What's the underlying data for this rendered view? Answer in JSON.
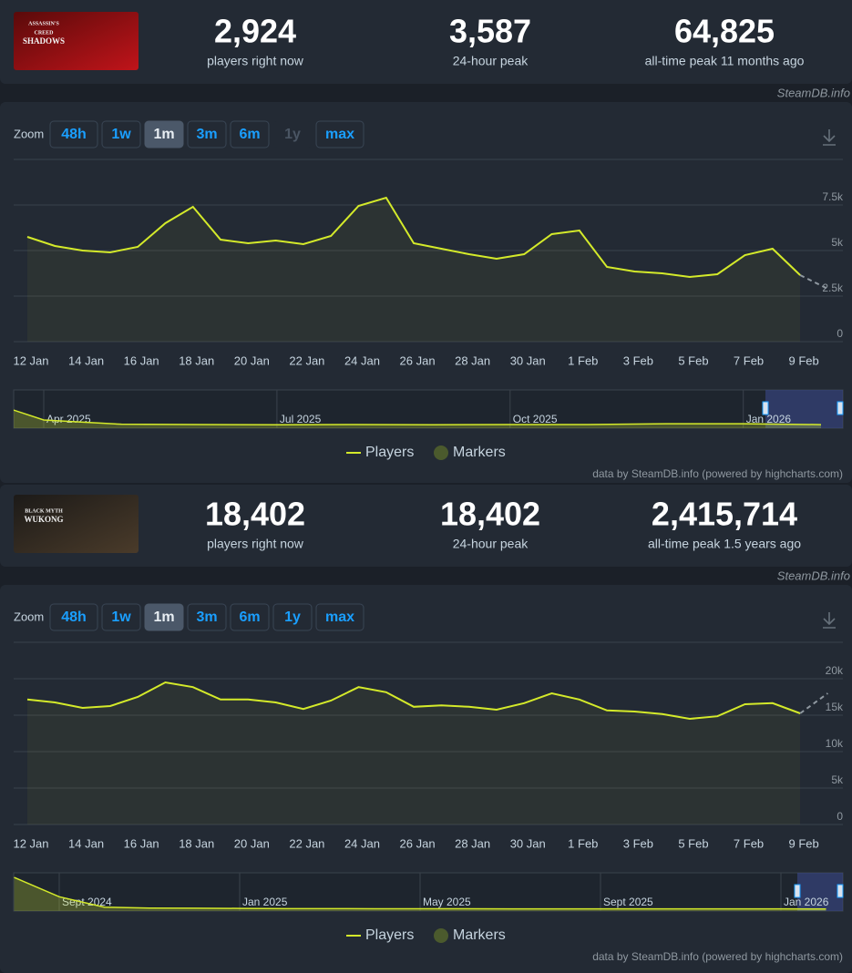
{
  "site": "SteamDB.info",
  "credit": "data by SteamDB.info (powered by highcharts.com)",
  "games": [
    {
      "logo_text": [
        "ASSASSIN'S",
        "CREED",
        "SHADOWS"
      ],
      "logo_colors": [
        "#5a0a0a",
        "#c0141a"
      ],
      "stats": [
        {
          "value": "2,924",
          "label": "players right now"
        },
        {
          "value": "3,587",
          "label": "24-hour peak"
        },
        {
          "value": "64,825",
          "label": "all-time peak 11 months ago"
        }
      ],
      "zoom": {
        "label": "Zoom",
        "buttons": [
          {
            "text": "48h"
          },
          {
            "text": "1w"
          },
          {
            "text": "1m",
            "active": true
          },
          {
            "text": "3m"
          },
          {
            "text": "6m"
          },
          {
            "text": "1y",
            "disabled": true
          },
          {
            "text": "max"
          }
        ]
      }
    },
    {
      "logo_text": [
        "BLACK MYTH",
        "WUKONG"
      ],
      "logo_colors": [
        "#1c1a18",
        "#4a3b2a"
      ],
      "stats": [
        {
          "value": "18,402",
          "label": "players right now"
        },
        {
          "value": "18,402",
          "label": "24-hour peak"
        },
        {
          "value": "2,415,714",
          "label": "all-time peak 1.5 years ago"
        }
      ],
      "zoom": {
        "label": "Zoom",
        "buttons": [
          {
            "text": "48h"
          },
          {
            "text": "1w"
          },
          {
            "text": "1m",
            "active": true
          },
          {
            "text": "3m"
          },
          {
            "text": "6m"
          },
          {
            "text": "1y"
          },
          {
            "text": "max"
          }
        ]
      }
    }
  ],
  "chart_data": [
    {
      "type": "line",
      "categories": [
        "12 Jan",
        null,
        "14 Jan",
        null,
        "16 Jan",
        null,
        "18 Jan",
        null,
        "20 Jan",
        null,
        "22 Jan",
        null,
        "24 Jan",
        null,
        "26 Jan",
        null,
        "28 Jan",
        null,
        "30 Jan",
        null,
        "1 Feb",
        null,
        "3 Feb",
        null,
        "5 Feb",
        null,
        "7 Feb",
        null,
        "9 Feb",
        null
      ],
      "series": [
        {
          "name": "Players",
          "color": "#d4ea2a",
          "values": [
            5750,
            5250,
            5000,
            4900,
            5200,
            6500,
            7400,
            5600,
            5400,
            5550,
            5350,
            5800,
            7450,
            7900,
            5400,
            5100,
            4800,
            4550,
            4800,
            5900,
            6100,
            4100,
            3850,
            3750,
            3550,
            3700,
            4750,
            5100,
            3650,
            2900
          ]
        }
      ],
      "dashed_last_segment": true,
      "markers_legend": {
        "name": "Markers",
        "color": "#4b5a2d"
      },
      "ylim": [
        0,
        10000
      ],
      "yticks": [
        {
          "value": 0,
          "label": "0"
        },
        {
          "value": 2500,
          "label": "2.5k"
        },
        {
          "value": 5000,
          "label": "5k"
        },
        {
          "value": 7500,
          "label": "7.5k"
        }
      ],
      "grid": true,
      "navigator": {
        "categories": [
          null,
          "Apr 2025",
          null,
          null,
          "Jul 2025",
          null,
          null,
          "Oct 2025",
          null,
          null,
          "Jan 2026",
          null
        ],
        "values": [
          60000,
          12000,
          4000,
          3500,
          3000,
          3500,
          3000,
          3500,
          3500,
          5000,
          5000,
          3300
        ],
        "ylim": [
          0,
          65000
        ]
      }
    },
    {
      "type": "line",
      "categories": [
        "12 Jan",
        null,
        "14 Jan",
        null,
        "16 Jan",
        null,
        "18 Jan",
        null,
        "20 Jan",
        null,
        "22 Jan",
        null,
        "24 Jan",
        null,
        "26 Jan",
        null,
        "28 Jan",
        null,
        "30 Jan",
        null,
        "1 Feb",
        null,
        "3 Feb",
        null,
        "5 Feb",
        null,
        "7 Feb",
        null,
        "9 Feb",
        null
      ],
      "series": [
        {
          "name": "Players",
          "color": "#d4ea2a",
          "values": [
            17150,
            16750,
            16000,
            16250,
            17500,
            19500,
            18850,
            17150,
            17150,
            16750,
            15850,
            17000,
            18850,
            18150,
            16150,
            16350,
            16150,
            15750,
            16650,
            18000,
            17150,
            15650,
            15500,
            15150,
            14500,
            14850,
            16500,
            16650,
            15250,
            18000
          ]
        }
      ],
      "dashed_last_segment": true,
      "markers_legend": {
        "name": "Markers",
        "color": "#4b5a2d"
      },
      "ylim": [
        0,
        25000
      ],
      "yticks": [
        {
          "value": 0,
          "label": "0"
        },
        {
          "value": 5000,
          "label": "5k"
        },
        {
          "value": 10000,
          "label": "10k"
        },
        {
          "value": 15000,
          "label": "15k"
        },
        {
          "value": 20000,
          "label": "20k"
        }
      ],
      "grid": true,
      "navigator": {
        "categories": [
          null,
          "Sept 2024",
          null,
          null,
          null,
          "Jan 2025",
          null,
          null,
          null,
          "May 2025",
          null,
          null,
          null,
          "Sept 2025",
          null,
          null,
          null,
          "Jan 2026",
          null
        ],
        "values": [
          2300000,
          900000,
          150000,
          80000,
          70000,
          60000,
          45000,
          40000,
          35000,
          32000,
          30000,
          28000,
          27000,
          26000,
          25000,
          24000,
          23000,
          22000,
          18000
        ],
        "ylim": [
          0,
          2500000
        ]
      }
    }
  ]
}
